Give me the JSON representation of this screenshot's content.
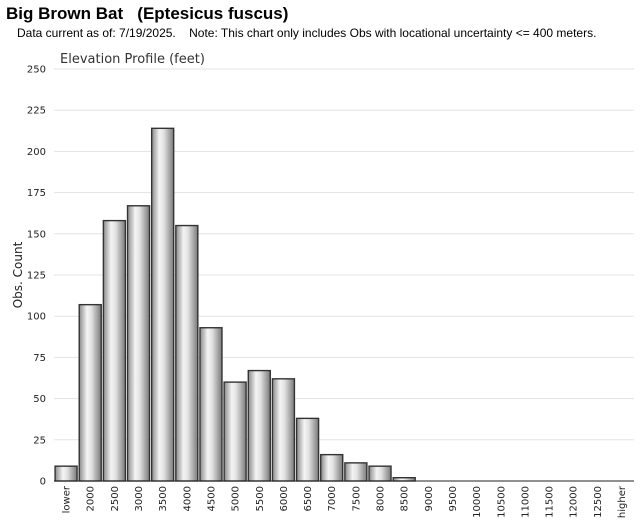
{
  "header": {
    "title": "Big Brown Bat   (Eptesicus fuscus)",
    "subtitle": "Data current as of: 7/19/2025.    Note: This chart only includes Obs with locational uncertainty <= 400 meters."
  },
  "chart_data": {
    "type": "bar",
    "title": "Elevation Profile (feet)",
    "xlabel": "",
    "ylabel": "Obs. Count",
    "ylim": [
      0,
      250
    ],
    "yticks": [
      0,
      25,
      50,
      75,
      100,
      125,
      150,
      175,
      200,
      225,
      250
    ],
    "grid": true,
    "categories": [
      "lower",
      "2000",
      "2500",
      "3000",
      "3500",
      "4000",
      "4500",
      "5000",
      "5500",
      "6000",
      "6500",
      "7000",
      "7500",
      "8000",
      "8500",
      "9000",
      "9500",
      "10000",
      "10500",
      "11000",
      "11500",
      "12000",
      "12500",
      "higher"
    ],
    "values": [
      9,
      107,
      158,
      167,
      214,
      155,
      93,
      60,
      67,
      62,
      38,
      16,
      11,
      9,
      2,
      0,
      0,
      0,
      0,
      0,
      0,
      0,
      0,
      0
    ]
  }
}
